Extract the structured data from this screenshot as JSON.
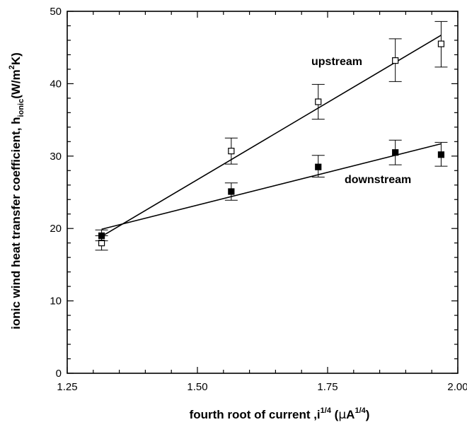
{
  "chart_data": {
    "type": "scatter",
    "xlabel": {
      "main": "fourth root of current ,i",
      "exp1": "1/4",
      "unit_open": " (",
      "mu": "µ",
      "unit": "A",
      "exp2": "1/4",
      "unit_close": ")"
    },
    "ylabel": {
      "main": "ionic wind heat transfer coefficient, h",
      "sub": "ionic",
      "unit_open": "(W/m",
      "exp": "2",
      "unit_close": "K)"
    },
    "xlim": [
      1.25,
      2.0
    ],
    "ylim": [
      0,
      50
    ],
    "x_ticks": [
      1.25,
      1.5,
      1.75,
      2.0
    ],
    "x_tick_labels": [
      "1.25",
      "1.50",
      "1.75",
      "2.00"
    ],
    "y_ticks": [
      0,
      10,
      20,
      30,
      40,
      50
    ],
    "y_tick_labels": [
      "0",
      "10",
      "20",
      "30",
      "40",
      "50"
    ],
    "grid": false,
    "series": [
      {
        "name": "upstream",
        "marker": "open-square",
        "x": [
          1.316,
          1.565,
          1.732,
          1.88,
          1.968
        ],
        "y": [
          18.0,
          30.7,
          37.5,
          43.2,
          45.5
        ],
        "err_low": [
          17.0,
          28.9,
          35.1,
          40.3,
          42.3
        ],
        "err_high": [
          19.0,
          32.5,
          39.9,
          46.2,
          48.6
        ],
        "fit": [
          [
            1.316,
            18.9
          ],
          [
            1.968,
            46.7
          ]
        ]
      },
      {
        "name": "downstream",
        "marker": "filled-square",
        "x": [
          1.316,
          1.565,
          1.732,
          1.88,
          1.968
        ],
        "y": [
          19.0,
          25.1,
          28.5,
          30.5,
          30.2
        ],
        "err_low": [
          18.3,
          23.9,
          27.1,
          28.8,
          28.6
        ],
        "err_high": [
          19.8,
          26.3,
          30.1,
          32.2,
          31.9
        ],
        "fit": [
          [
            1.316,
            19.9
          ],
          [
            1.968,
            31.7
          ]
        ]
      }
    ]
  }
}
